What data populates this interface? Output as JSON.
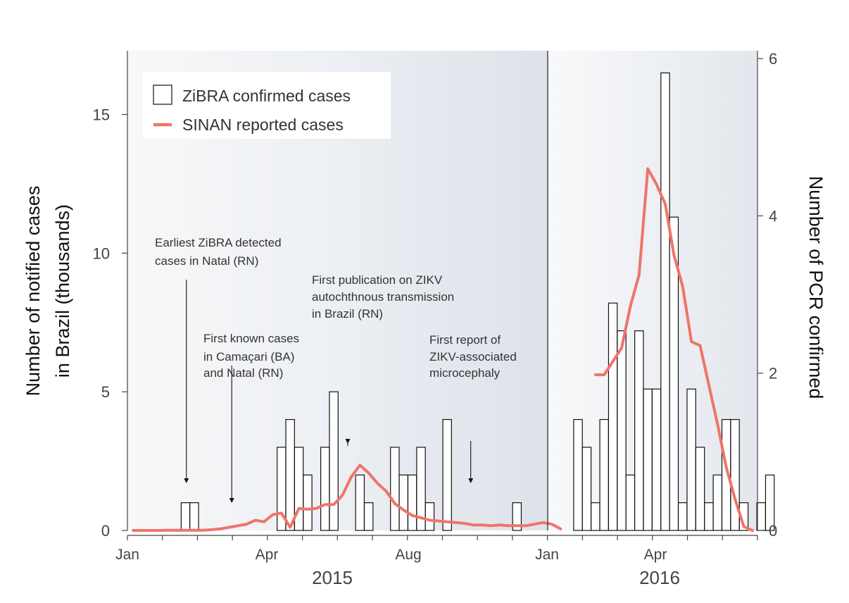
{
  "chart_data": {
    "type": "bar",
    "x_axis": {
      "tick_labels": [
        "Jan",
        "Apr",
        "Aug",
        "Jan",
        "Apr"
      ],
      "year_labels": [
        "2015",
        "2016"
      ]
    },
    "y_left": {
      "label_line1": "Number of notified cases",
      "label_line2": "in Brazil (thousands)",
      "range": [
        0,
        17.3
      ],
      "ticks": [
        0,
        5,
        10,
        15
      ]
    },
    "y_right": {
      "label": "Number of PCR confirmed",
      "range": [
        0,
        6.1
      ],
      "ticks": [
        0,
        2,
        4,
        6
      ]
    },
    "legend": [
      {
        "label": "ZiBRA confirmed cases",
        "kind": "bar"
      },
      {
        "label": "SINAN reported cases",
        "kind": "line",
        "color": "#ef7469"
      }
    ],
    "week_start": "2015-01-05",
    "bars": {
      "name": "ZiBRA confirmed cases",
      "axis": "left",
      "values": [
        0,
        0,
        0,
        0,
        0,
        0,
        1,
        1,
        0,
        0,
        0,
        0,
        0,
        0,
        0,
        0,
        0,
        3,
        4,
        3,
        2,
        0,
        3,
        5,
        0,
        0,
        2,
        1,
        0,
        0,
        3,
        2,
        2,
        3,
        1,
        0,
        4,
        0,
        0,
        0,
        0,
        0,
        0,
        0,
        1,
        0,
        0,
        0,
        0,
        0,
        0,
        4,
        3,
        1,
        4,
        8.2,
        7.2,
        2,
        7.2,
        5.1,
        5.1,
        16.5,
        11.3,
        1,
        5.1,
        3,
        1,
        2,
        4,
        4,
        1,
        0,
        1,
        2
      ]
    },
    "line": {
      "name": "SINAN reported cases",
      "axis": "right",
      "color": "#ef7469",
      "segments": [
        {
          "start_week": 0,
          "values": [
            0,
            0,
            0,
            0,
            0.003,
            0.003,
            0.003,
            0.003,
            0.003,
            0.01,
            0.02,
            0.04,
            0.06,
            0.08,
            0.13,
            0.11,
            0.2,
            0.22,
            0.04,
            0.28,
            0.27,
            0.28,
            0.33,
            0.33,
            0.45,
            0.68,
            0.83,
            0.73,
            0.6,
            0.5,
            0.34,
            0.26,
            0.19,
            0.16,
            0.13,
            0.12,
            0.11,
            0.1,
            0.09,
            0.07,
            0.07,
            0.06,
            0.07,
            0.06,
            0.06,
            0.06,
            0.08,
            0.1,
            0.08,
            0.02
          ]
        },
        {
          "start_week": 53,
          "values": [
            1.98,
            1.98,
            2.15,
            2.32,
            2.85,
            3.25,
            4.6,
            4.4,
            4.15,
            3.5,
            3.1,
            2.4,
            2.35,
            1.85,
            1.35,
            0.8,
            0.4,
            0.05,
            0
          ]
        }
      ]
    },
    "annotations": [
      {
        "lines": [
          "Earliest ZiBRA detected",
          "cases in Natal (RN)"
        ],
        "arrow_week": 6.6
      },
      {
        "lines": [
          "First known cases",
          "in Camaçari (BA)",
          "and Natal (RN)"
        ],
        "arrow_week": 11.8
      },
      {
        "lines": [
          "First publication on ZIKV",
          "autochthnous transmission",
          "in Brazil (RN)"
        ],
        "arrow_week": 25.1
      },
      {
        "lines": [
          "First report of",
          "ZIKV-associated",
          "microcephaly"
        ],
        "arrow_week": 39.2
      }
    ]
  }
}
